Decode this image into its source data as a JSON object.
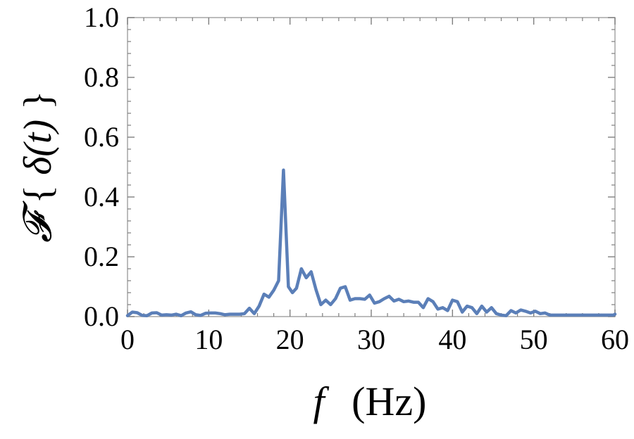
{
  "chart_data": {
    "type": "line",
    "xlabel": {
      "var": "f",
      "unit": "(Hz)"
    },
    "ylabel": {
      "operator": "𝓕",
      "open": "{",
      "inner": "δ(t)",
      "close": "}"
    },
    "xlim": [
      0,
      60
    ],
    "ylim": [
      0,
      1.0
    ],
    "x_ticks": [
      0,
      10,
      20,
      30,
      40,
      50,
      60
    ],
    "x_tick_labels": [
      "0",
      "10",
      "20",
      "30",
      "40",
      "50",
      "60"
    ],
    "y_ticks": [
      0,
      0.2,
      0.4,
      0.6,
      0.8,
      1.0
    ],
    "y_tick_labels": [
      "0.0",
      "0.2",
      "0.4",
      "0.6",
      "0.8",
      "1.0"
    ],
    "grid": false,
    "line_color": "#5b7fb8",
    "series": [
      {
        "x": [
          0,
          0.6,
          1.2,
          1.8,
          2.4,
          3.0,
          3.6,
          4.2,
          4.8,
          5.4,
          6.0,
          6.6,
          7.2,
          7.8,
          8.4,
          9.0,
          9.6,
          10.2,
          10.8,
          11.4,
          12.0,
          12.6,
          13.2,
          13.8,
          14.4,
          15.0,
          15.6,
          16.2,
          16.8,
          17.4,
          18.0,
          18.6,
          19.2,
          19.8,
          20.3,
          20.8,
          21.4,
          22.0,
          22.6,
          23.2,
          23.8,
          24.4,
          25.0,
          25.6,
          26.2,
          26.8,
          27.4,
          28.0,
          28.6,
          29.2,
          29.8,
          30.4,
          31.0,
          31.6,
          32.2,
          32.8,
          33.4,
          34.0,
          34.6,
          35.2,
          35.8,
          36.4,
          37.0,
          37.6,
          38.2,
          38.8,
          39.4,
          40.0,
          40.6,
          41.2,
          41.8,
          42.4,
          43.0,
          43.6,
          44.2,
          44.8,
          45.4,
          46.0,
          46.6,
          47.2,
          47.8,
          48.4,
          49.0,
          49.6,
          50.2,
          50.8,
          51.4,
          52.0,
          52.6,
          53.2,
          53.8,
          54.4,
          55.0,
          55.6,
          56.2,
          56.8,
          57.4,
          58.0,
          58.6,
          59.2,
          59.8,
          60.0
        ],
        "y": [
          0.003,
          0.015,
          0.013,
          0.004,
          0.003,
          0.012,
          0.013,
          0.005,
          0.006,
          0.005,
          0.008,
          0.003,
          0.012,
          0.016,
          0.006,
          0.004,
          0.011,
          0.012,
          0.012,
          0.01,
          0.006,
          0.008,
          0.008,
          0.008,
          0.01,
          0.028,
          0.01,
          0.035,
          0.075,
          0.065,
          0.088,
          0.12,
          0.49,
          0.1,
          0.08,
          0.095,
          0.16,
          0.13,
          0.15,
          0.09,
          0.04,
          0.055,
          0.04,
          0.06,
          0.095,
          0.1,
          0.055,
          0.06,
          0.06,
          0.058,
          0.072,
          0.045,
          0.05,
          0.06,
          0.068,
          0.052,
          0.058,
          0.05,
          0.052,
          0.048,
          0.048,
          0.03,
          0.06,
          0.05,
          0.025,
          0.03,
          0.02,
          0.055,
          0.05,
          0.015,
          0.035,
          0.03,
          0.01,
          0.035,
          0.015,
          0.03,
          0.01,
          0.005,
          0.003,
          0.02,
          0.012,
          0.022,
          0.018,
          0.012,
          0.018,
          0.01,
          0.012,
          0.005,
          0.005,
          0.005,
          0.005,
          0.005,
          0.005,
          0.005,
          0.005,
          0.005,
          0.005,
          0.005,
          0.005,
          0.005,
          0.005,
          0.008
        ]
      }
    ]
  }
}
